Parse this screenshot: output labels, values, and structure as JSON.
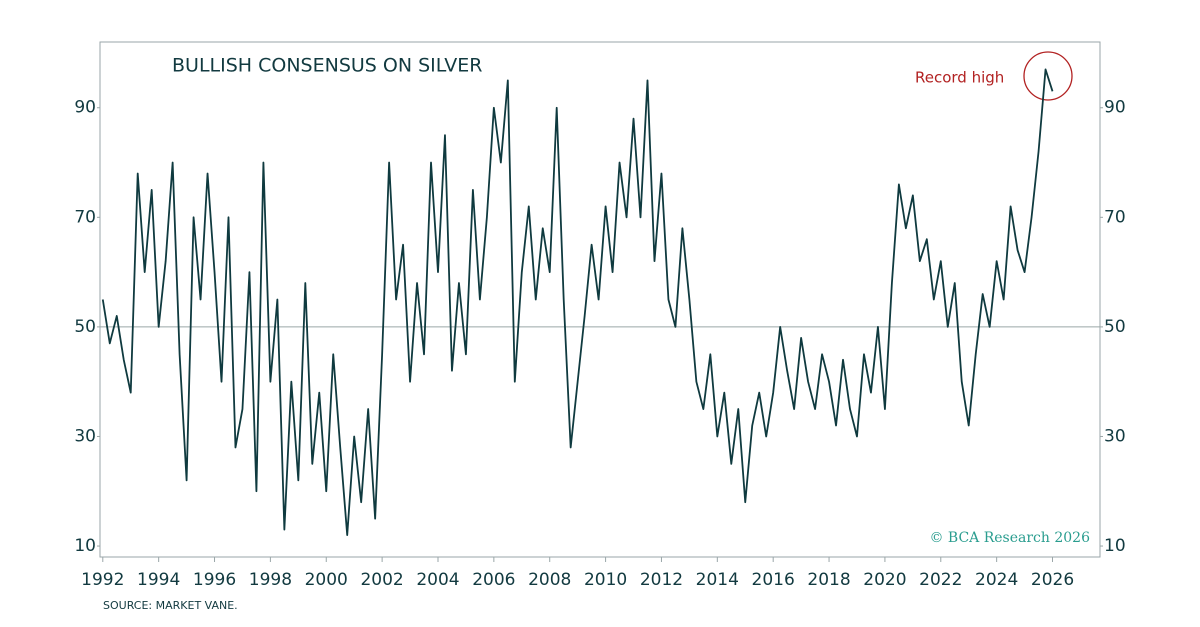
{
  "chart_data": {
    "type": "line",
    "title": "BULLISH CONSENSUS ON SILVER",
    "annotation": "Record high",
    "source": "SOURCE: MARKET VANE.",
    "credit": "© BCA Research 2026",
    "color": "#0f3a3f",
    "hline": 50,
    "xlim": [
      1991.9,
      2027.7
    ],
    "ylim": [
      8,
      102
    ],
    "xticks": [
      1992,
      1994,
      1996,
      1998,
      2000,
      2002,
      2004,
      2006,
      2008,
      2010,
      2012,
      2014,
      2016,
      2018,
      2020,
      2022,
      2024,
      2026
    ],
    "yticks": [
      10,
      30,
      50,
      70,
      90
    ],
    "x": [
      1992.0,
      1992.25,
      1992.5,
      1992.75,
      1993.0,
      1993.25,
      1993.5,
      1993.75,
      1994.0,
      1994.25,
      1994.5,
      1994.75,
      1995.0,
      1995.25,
      1995.5,
      1995.75,
      1996.0,
      1996.25,
      1996.5,
      1996.75,
      1997.0,
      1997.25,
      1997.5,
      1997.75,
      1998.0,
      1998.25,
      1998.5,
      1998.75,
      1999.0,
      1999.25,
      1999.5,
      1999.75,
      2000.0,
      2000.25,
      2000.5,
      2000.75,
      2001.0,
      2001.25,
      2001.5,
      2001.75,
      2002.0,
      2002.25,
      2002.5,
      2002.75,
      2003.0,
      2003.25,
      2003.5,
      2003.75,
      2004.0,
      2004.25,
      2004.5,
      2004.75,
      2005.0,
      2005.25,
      2005.5,
      2005.75,
      2006.0,
      2006.25,
      2006.5,
      2006.75,
      2007.0,
      2007.25,
      2007.5,
      2007.75,
      2008.0,
      2008.25,
      2008.5,
      2008.75,
      2009.0,
      2009.25,
      2009.5,
      2009.75,
      2010.0,
      2010.25,
      2010.5,
      2010.75,
      2011.0,
      2011.25,
      2011.5,
      2011.75,
      2012.0,
      2012.25,
      2012.5,
      2012.75,
      2013.0,
      2013.25,
      2013.5,
      2013.75,
      2014.0,
      2014.25,
      2014.5,
      2014.75,
      2015.0,
      2015.25,
      2015.5,
      2015.75,
      2016.0,
      2016.25,
      2016.5,
      2016.75,
      2017.0,
      2017.25,
      2017.5,
      2017.75,
      2018.0,
      2018.25,
      2018.5,
      2018.75,
      2019.0,
      2019.25,
      2019.5,
      2019.75,
      2020.0,
      2020.25,
      2020.5,
      2020.75,
      2021.0,
      2021.25,
      2021.5,
      2021.75,
      2022.0,
      2022.25,
      2022.5,
      2022.75,
      2023.0,
      2023.25,
      2023.5,
      2023.75,
      2024.0,
      2024.25,
      2024.5,
      2024.75,
      2025.0,
      2025.25,
      2025.5,
      2025.75,
      2026.0
    ],
    "values": [
      55,
      47,
      52,
      44,
      38,
      78,
      60,
      75,
      50,
      62,
      80,
      45,
      22,
      70,
      55,
      78,
      60,
      40,
      70,
      28,
      35,
      60,
      20,
      80,
      40,
      55,
      13,
      40,
      22,
      58,
      25,
      38,
      20,
      45,
      28,
      12,
      30,
      18,
      35,
      15,
      45,
      80,
      55,
      65,
      40,
      58,
      45,
      80,
      60,
      85,
      42,
      58,
      45,
      75,
      55,
      70,
      90,
      80,
      95,
      40,
      60,
      72,
      55,
      68,
      60,
      90,
      55,
      28,
      40,
      52,
      65,
      55,
      72,
      60,
      80,
      70,
      88,
      70,
      95,
      62,
      78,
      55,
      50,
      68,
      55,
      40,
      35,
      45,
      30,
      38,
      25,
      35,
      18,
      32,
      38,
      30,
      38,
      50,
      42,
      35,
      48,
      40,
      35,
      45,
      40,
      32,
      44,
      35,
      30,
      45,
      38,
      50,
      35,
      58,
      76,
      68,
      74,
      62,
      66,
      55,
      62,
      50,
      58,
      40,
      32,
      45,
      56,
      50,
      62,
      55,
      72,
      64,
      60,
      70,
      82,
      97,
      93
    ]
  }
}
